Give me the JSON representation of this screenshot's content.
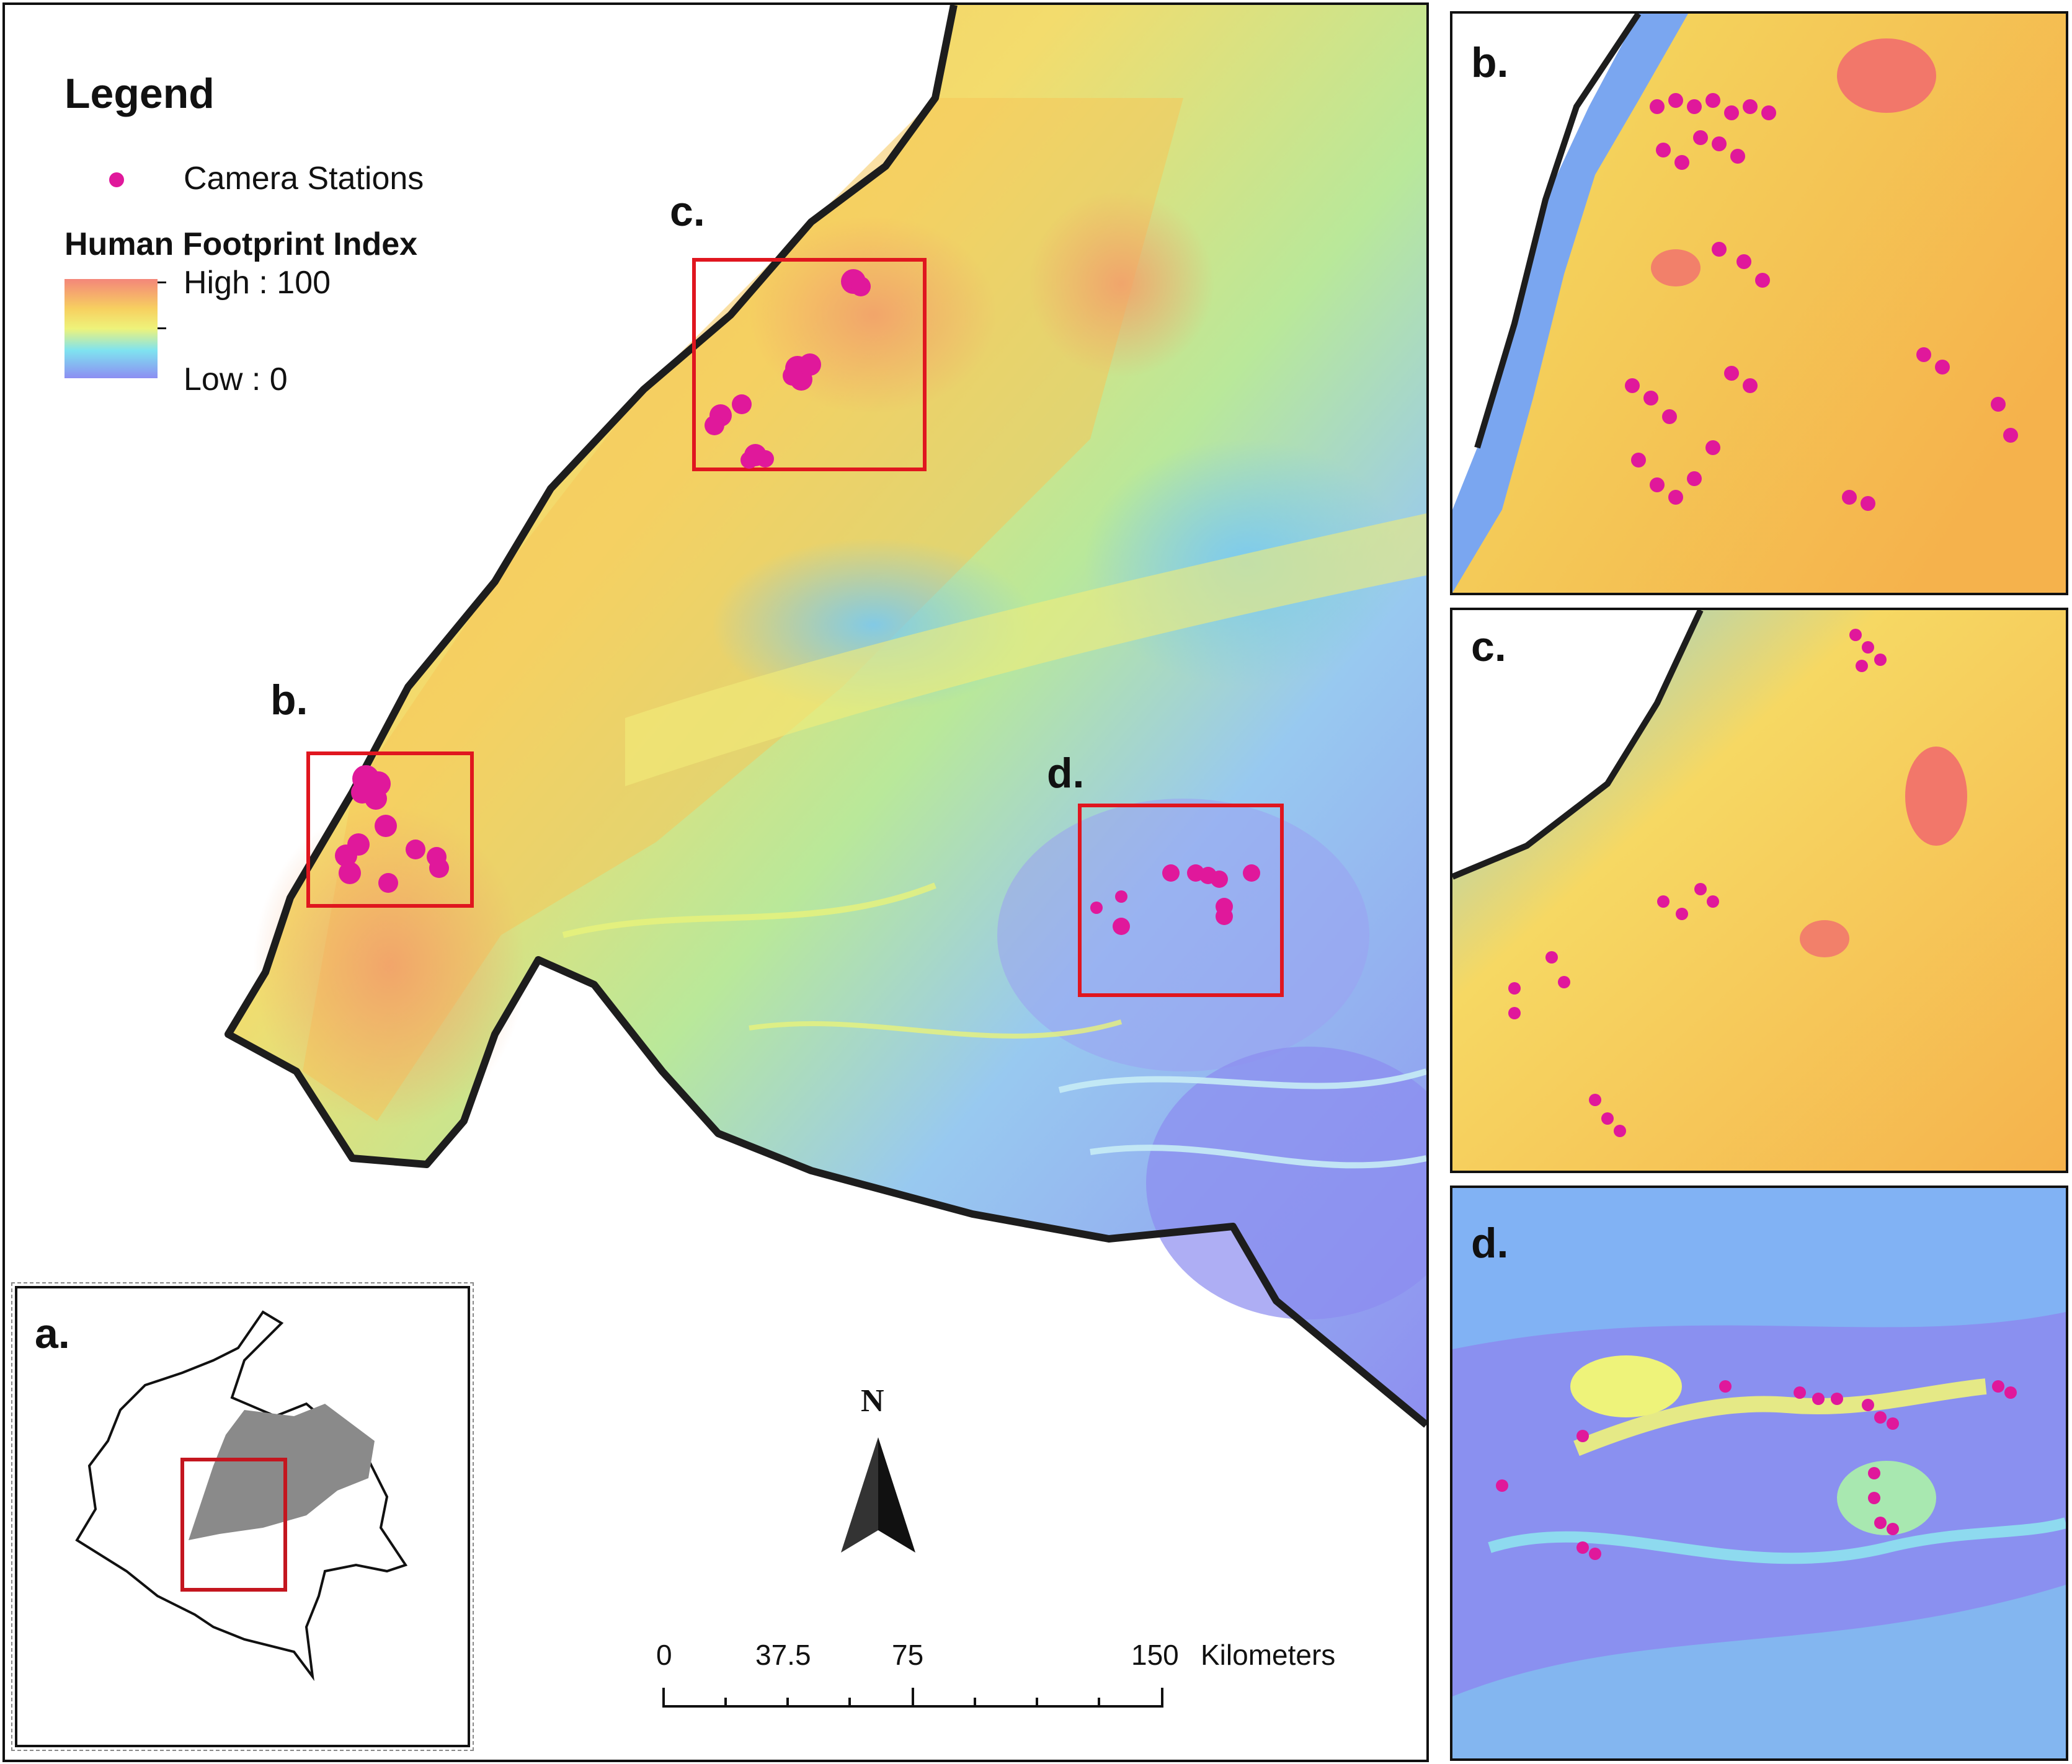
{
  "legend": {
    "title": "Legend",
    "camera_label": "Camera Stations",
    "index_title": "Human Footprint Index",
    "high_label": "High : 100",
    "low_label": "Low : 0",
    "camera_color": "#e0189b",
    "gradient_colors": [
      "#f4867a",
      "#f7d060",
      "#eef37a",
      "#7fe3f0",
      "#8c8ef2"
    ]
  },
  "main_map": {
    "region_labels": {
      "b": "b.",
      "c": "c.",
      "d": "d."
    },
    "highlight_color": "#e0161f",
    "inset_label": "a."
  },
  "north_arrow": {
    "label": "N"
  },
  "scale_bar": {
    "ticks": [
      "0",
      "37.5",
      "75",
      "150"
    ],
    "unit": "Kilometers"
  },
  "panels": {
    "b": {
      "label": "b."
    },
    "c": {
      "label": "c."
    },
    "d": {
      "label": "d."
    }
  }
}
